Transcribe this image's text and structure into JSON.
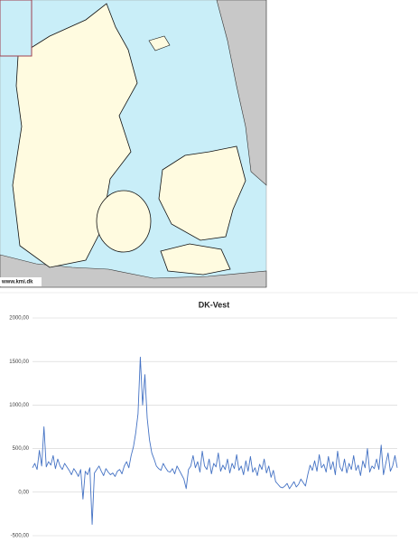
{
  "map_credit": "www.kmi.dk",
  "chart_data": {
    "type": "line",
    "title": "DK-Vest",
    "color": "#4472c4",
    "grid": true,
    "ylim": [
      -500,
      2000
    ],
    "yticks": [
      {
        "value": -500,
        "label": "-500,00"
      },
      {
        "value": 0,
        "label": "0,00"
      },
      {
        "value": 500,
        "label": "500,00"
      },
      {
        "value": 1000,
        "label": "1000,00"
      },
      {
        "value": 1500,
        "label": "1500,00"
      },
      {
        "value": 2000,
        "label": "2000,00"
      }
    ],
    "values": [
      280,
      330,
      260,
      480,
      300,
      750,
      290,
      350,
      310,
      420,
      270,
      380,
      300,
      260,
      330,
      290,
      250,
      200,
      270,
      230,
      180,
      260,
      -80,
      240,
      200,
      280,
      -370,
      220,
      260,
      300,
      240,
      190,
      270,
      230,
      200,
      220,
      180,
      240,
      260,
      210,
      300,
      350,
      280,
      420,
      520,
      680,
      900,
      1550,
      1000,
      1350,
      850,
      600,
      450,
      380,
      300,
      270,
      250,
      330,
      280,
      240,
      230,
      270,
      210,
      300,
      250,
      200,
      150,
      40,
      260,
      300,
      420,
      280,
      350,
      230,
      470,
      300,
      260,
      380,
      210,
      330,
      290,
      450,
      240,
      310,
      260,
      380,
      220,
      330,
      270,
      430,
      250,
      300,
      200,
      360,
      240,
      410,
      230,
      280,
      190,
      320,
      260,
      380,
      220,
      300,
      170,
      250,
      120,
      90,
      60,
      50,
      70,
      100,
      40,
      80,
      120,
      60,
      90,
      150,
      110,
      70,
      200,
      310,
      250,
      360,
      240,
      430,
      280,
      320,
      230,
      410,
      260,
      350,
      200,
      470,
      290,
      240,
      380,
      220,
      330,
      260,
      420,
      250,
      310,
      190,
      360,
      280,
      500,
      230,
      300,
      270,
      380,
      260,
      540,
      200,
      330,
      450,
      240,
      300,
      420,
      280
    ]
  }
}
